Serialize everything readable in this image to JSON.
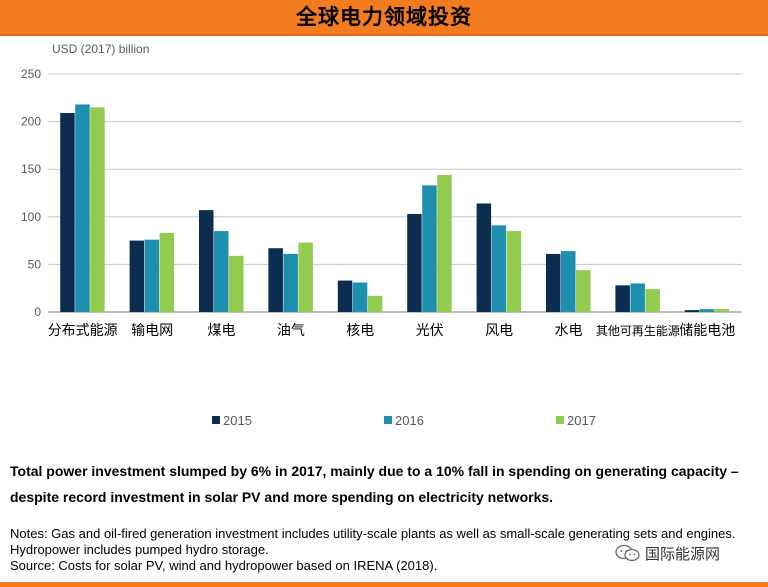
{
  "header": {
    "title": "全球电力领域投资"
  },
  "colors": {
    "accent": "#f47c20",
    "s2015": "#0c2d4f",
    "s2016": "#1f8fb0",
    "s2017": "#92cc4f"
  },
  "chart_data": {
    "type": "bar",
    "unit_label": "USD (2017) billion",
    "ylim": [
      0,
      250
    ],
    "yticks": [
      0,
      50,
      100,
      150,
      200,
      250
    ],
    "grid": true,
    "legend_position": "bottom-center",
    "categories": [
      "分布式能源",
      "输电网",
      "煤电",
      "油气",
      "核电",
      "光伏",
      "风电",
      "水电",
      "其他可再生能源",
      "储能电池"
    ],
    "series": [
      {
        "name": "2015",
        "color": "#0c2d4f",
        "values": [
          209,
          75,
          107,
          67,
          33,
          103,
          114,
          61,
          28,
          2
        ]
      },
      {
        "name": "2016",
        "color": "#1f8fb0",
        "values": [
          218,
          76,
          85,
          61,
          31,
          133,
          91,
          64,
          30,
          3
        ]
      },
      {
        "name": "2017",
        "color": "#92cc4f",
        "values": [
          215,
          83,
          59,
          73,
          17,
          144,
          85,
          44,
          24,
          3
        ]
      }
    ]
  },
  "summary": "Total power investment slumped by 6% in 2017, mainly due to a 10% fall in spending on generating capacity – despite record investment in solar PV and more spending on electricity networks.",
  "notes": {
    "line1": "Notes: Gas and oil-fired generation investment includes utility-scale plants as well as small-scale generating sets and engines. Hydropower includes pumped hydro storage.",
    "line2": "Source: Costs for solar PV, wind and hydropower based on IRENA (2018)."
  },
  "watermark": {
    "text": "国际能源网",
    "icon": "wechat-icon"
  }
}
